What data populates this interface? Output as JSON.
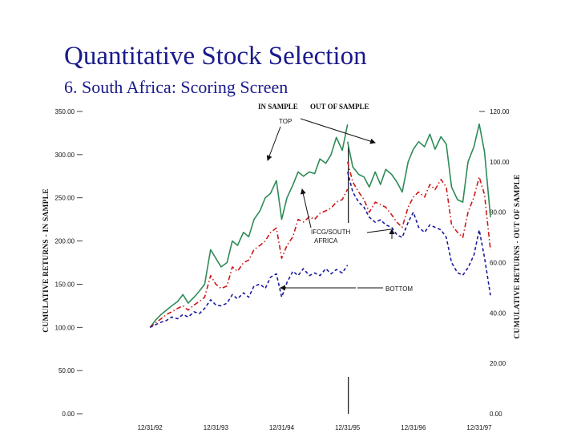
{
  "slide": {
    "title": "Quantitative Stock Selection",
    "subtitle": "6. South Africa: Scoring Screen"
  },
  "chart_data": {
    "type": "line",
    "title": "",
    "ylabel_left": "CUMULATIVE RETURNS - IN SAMPLE",
    "ylabel_right": "CUMULATIVE RETURNS - OUT OF SAMPLE",
    "ylim_left": [
      0,
      350
    ],
    "ylim_right": [
      0,
      120
    ],
    "yticks_left": [
      "0.00",
      "50.00",
      "100.00",
      "150.00",
      "200.00",
      "250.00",
      "300.00",
      "350.00"
    ],
    "yticks_right": [
      "0.00",
      "20.00",
      "40.00",
      "60.00",
      "80.00",
      "100.00",
      "120.00"
    ],
    "x_range": [
      1992.0,
      1998.0
    ],
    "x_ticks": [
      {
        "label": "12/31/92",
        "t": 1993.0
      },
      {
        "label": "12/31/93",
        "t": 1994.0
      },
      {
        "label": "12/31/94",
        "t": 1995.0
      },
      {
        "label": "12/31/95",
        "t": 1996.0
      },
      {
        "label": "12/31/96",
        "t": 1997.0
      },
      {
        "label": "12/31/97",
        "t": 1998.0
      }
    ],
    "divider_t": 1996.0,
    "annotations": {
      "in_sample": "IN SAMPLE",
      "out_of_sample": "OUT OF SAMPLE",
      "top": "TOP",
      "index": "IFCG/SOUTH",
      "index2": "AFRICA",
      "bottom": "BOTTOM"
    },
    "series": [
      {
        "name": "TOP",
        "color": "#2e8b57",
        "style": "solid",
        "in_sample": {
          "t": [
            1993.0,
            1993.08,
            1993.17,
            1993.25,
            1993.33,
            1993.42,
            1993.5,
            1993.58,
            1993.67,
            1993.75,
            1993.83,
            1993.92,
            1994.0,
            1994.08,
            1994.17,
            1994.25,
            1994.33,
            1994.42,
            1994.5,
            1994.58,
            1994.67,
            1994.75,
            1994.83,
            1994.92,
            1995.0,
            1995.08,
            1995.17,
            1995.25,
            1995.33,
            1995.42,
            1995.5,
            1995.58,
            1995.67,
            1995.75,
            1995.83,
            1995.92,
            1996.0
          ],
          "v": [
            100,
            108,
            115,
            120,
            125,
            130,
            138,
            128,
            135,
            142,
            150,
            190,
            180,
            170,
            175,
            200,
            195,
            210,
            205,
            225,
            235,
            250,
            255,
            270,
            225,
            250,
            265,
            280,
            275,
            280,
            278,
            295,
            290,
            300,
            320,
            305,
            335
          ]
        },
        "out_sample": {
          "t": [
            1996.0,
            1996.08,
            1996.17,
            1996.25,
            1996.33,
            1996.42,
            1996.5,
            1996.58,
            1996.67,
            1996.75,
            1996.83,
            1996.92,
            1997.0,
            1997.08,
            1997.17,
            1997.25,
            1997.33,
            1997.42,
            1997.5,
            1997.58,
            1997.67,
            1997.75,
            1997.83,
            1997.92,
            1998.0,
            1998.08,
            1998.17
          ],
          "v": [
            108,
            98,
            95,
            94,
            90,
            96,
            91,
            97,
            95,
            92,
            88,
            100,
            105,
            108,
            106,
            111,
            105,
            110,
            107,
            90,
            85,
            84,
            100,
            106,
            115,
            104,
            78
          ]
        }
      },
      {
        "name": "IFCG/SOUTH AFRICA",
        "color": "#cc1a1a",
        "style": "dashdot",
        "in_sample": {
          "t": [
            1993.0,
            1993.08,
            1993.17,
            1993.25,
            1993.33,
            1993.42,
            1993.5,
            1993.58,
            1993.67,
            1993.75,
            1993.83,
            1993.92,
            1994.0,
            1994.08,
            1994.17,
            1994.25,
            1994.33,
            1994.42,
            1994.5,
            1994.58,
            1994.67,
            1994.75,
            1994.83,
            1994.92,
            1995.0,
            1995.08,
            1995.17,
            1995.25,
            1995.33,
            1995.42,
            1995.5,
            1995.58,
            1995.67,
            1995.75,
            1995.83,
            1995.92,
            1996.0
          ],
          "v": [
            100,
            105,
            110,
            115,
            118,
            122,
            125,
            120,
            126,
            130,
            135,
            160,
            150,
            145,
            148,
            170,
            165,
            175,
            178,
            190,
            195,
            200,
            210,
            215,
            180,
            195,
            205,
            225,
            222,
            228,
            225,
            232,
            235,
            238,
            245,
            248,
            260
          ]
        },
        "out_sample": {
          "t": [
            1996.0,
            1996.08,
            1996.17,
            1996.25,
            1996.33,
            1996.42,
            1996.5,
            1996.58,
            1996.67,
            1996.75,
            1996.83,
            1996.92,
            1997.0,
            1997.08,
            1997.17,
            1997.25,
            1997.33,
            1997.42,
            1997.5,
            1997.58,
            1997.67,
            1997.75,
            1997.83,
            1997.92,
            1998.0,
            1998.08,
            1998.17
          ],
          "v": [
            100,
            92,
            88,
            85,
            80,
            84,
            83,
            82,
            79,
            76,
            74,
            82,
            86,
            88,
            86,
            91,
            89,
            93,
            90,
            75,
            72,
            70,
            80,
            86,
            94,
            87,
            65
          ]
        }
      },
      {
        "name": "BOTTOM",
        "color": "#1a1aa0",
        "style": "dashed",
        "in_sample": {
          "t": [
            1993.0,
            1993.08,
            1993.17,
            1993.25,
            1993.33,
            1993.42,
            1993.5,
            1993.58,
            1993.67,
            1993.75,
            1993.83,
            1993.92,
            1994.0,
            1994.08,
            1994.17,
            1994.25,
            1994.33,
            1994.42,
            1994.5,
            1994.58,
            1994.67,
            1994.75,
            1994.83,
            1994.92,
            1995.0,
            1995.08,
            1995.17,
            1995.25,
            1995.33,
            1995.42,
            1995.5,
            1995.58,
            1995.67,
            1995.75,
            1995.83,
            1995.92,
            1996.0
          ],
          "v": [
            100,
            103,
            106,
            108,
            112,
            110,
            115,
            112,
            118,
            116,
            122,
            132,
            126,
            125,
            128,
            138,
            133,
            140,
            135,
            148,
            150,
            145,
            158,
            162,
            135,
            152,
            165,
            160,
            168,
            160,
            163,
            160,
            168,
            162,
            167,
            163,
            172
          ]
        },
        "out_sample": {
          "t": [
            1996.0,
            1996.08,
            1996.17,
            1996.25,
            1996.33,
            1996.42,
            1996.5,
            1996.58,
            1996.67,
            1996.75,
            1996.83,
            1996.92,
            1997.0,
            1997.08,
            1997.17,
            1997.25,
            1997.33,
            1997.42,
            1997.5,
            1997.58,
            1997.67,
            1997.75,
            1997.83,
            1997.92,
            1998.0,
            1998.08,
            1998.17
          ],
          "v": [
            96,
            88,
            84,
            82,
            78,
            76,
            77,
            75,
            74,
            71,
            70,
            76,
            80,
            74,
            72,
            75,
            74,
            73,
            70,
            60,
            56,
            55,
            58,
            63,
            73,
            62,
            47
          ]
        }
      }
    ]
  }
}
